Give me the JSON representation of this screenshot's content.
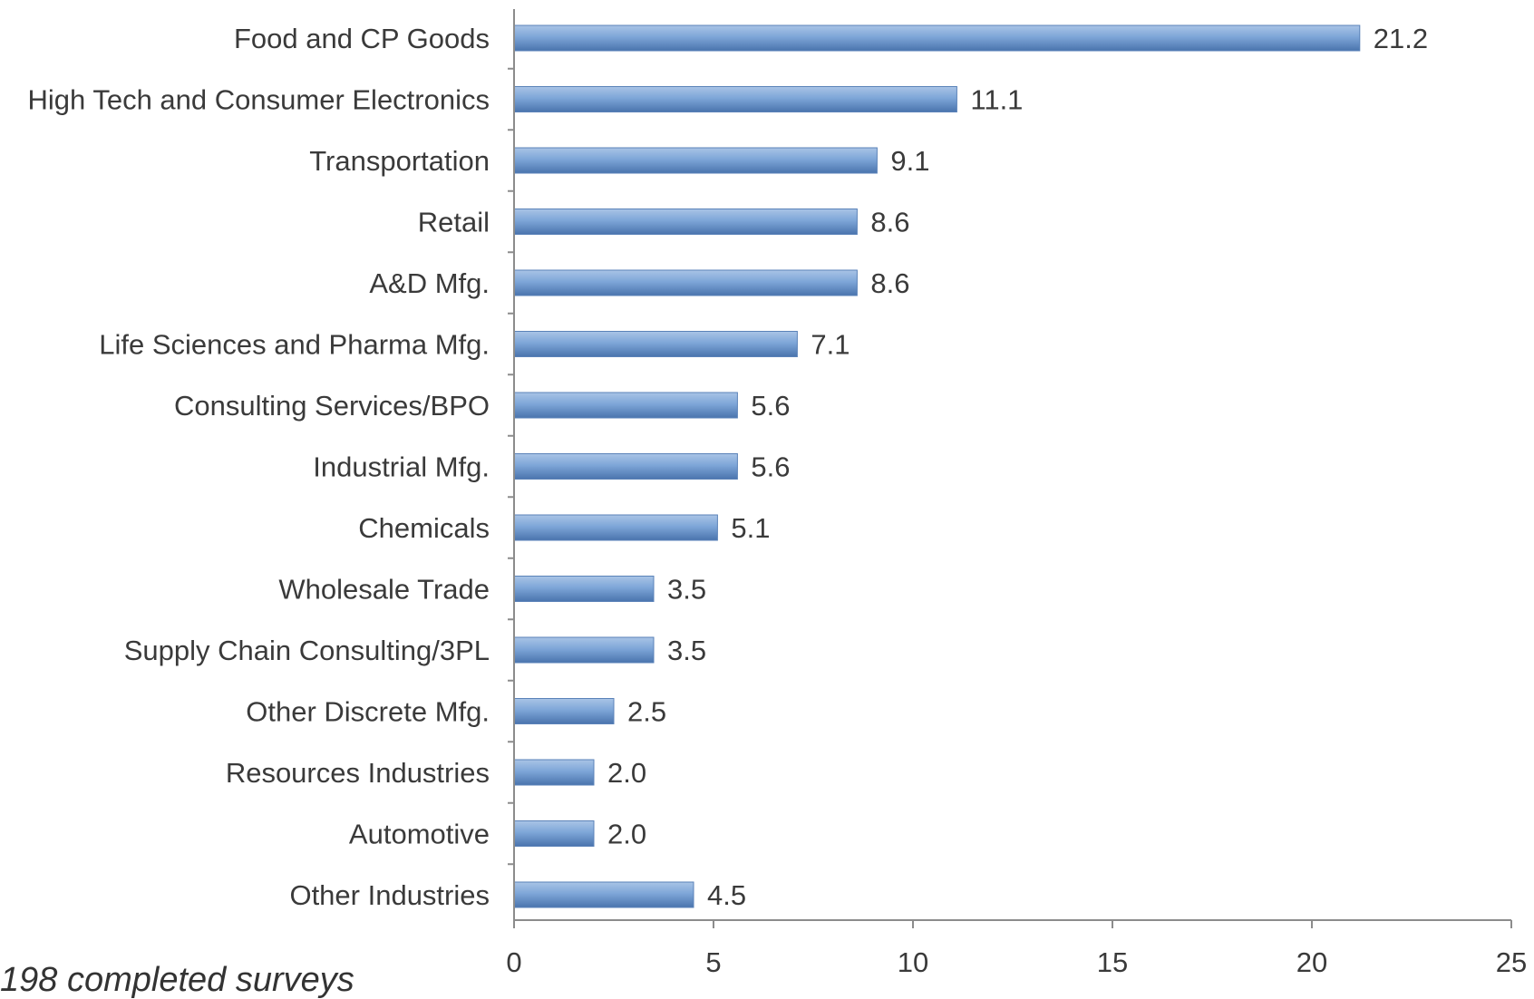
{
  "chart_data": {
    "type": "bar",
    "orientation": "horizontal",
    "categories": [
      "Food and CP Goods",
      "High Tech and Consumer Electronics",
      "Transportation",
      "Retail",
      "A&D Mfg.",
      "Life Sciences and Pharma Mfg.",
      "Consulting Services/BPO",
      "Industrial Mfg.",
      "Chemicals",
      "Wholesale Trade",
      "Supply Chain Consulting/3PL",
      "Other Discrete Mfg.",
      "Resources Industries",
      "Automotive",
      "Other Industries"
    ],
    "values": [
      21.2,
      11.1,
      9.1,
      8.6,
      8.6,
      7.1,
      5.6,
      5.6,
      5.1,
      3.5,
      3.5,
      2.5,
      2.0,
      2.0,
      4.5
    ],
    "value_labels": [
      "21.2",
      "11.1",
      "9.1",
      "8.6",
      "8.6",
      "7.1",
      "5.6",
      "5.6",
      "5.1",
      "3.5",
      "3.5",
      "2.5",
      "2.0",
      "2.0",
      "4.5"
    ],
    "xlim": [
      0,
      25
    ],
    "x_ticks": [
      0,
      5,
      10,
      15,
      20,
      25
    ],
    "x_tick_labels": [
      "0",
      "5",
      "10",
      "15",
      "20",
      "25"
    ],
    "grid": false,
    "bar_color": "#7ea6d8",
    "bar_color_dark": "#4a74ad"
  },
  "footnote": "198 completed surveys"
}
